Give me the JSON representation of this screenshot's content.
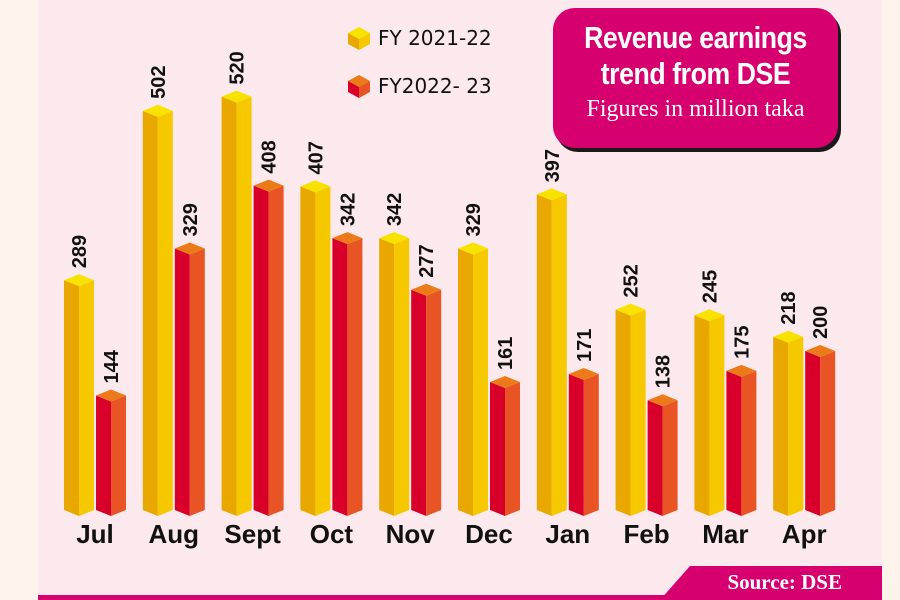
{
  "chart_data": {
    "type": "bar",
    "title": "Revenue earnings trend from DSE",
    "subtitle": "Figures in million taka",
    "xlabel": "",
    "ylabel": "",
    "ylim": [
      0,
      560
    ],
    "grid": false,
    "legend_position": "top-center",
    "categories": [
      "Jul",
      "Aug",
      "Sept",
      "Oct",
      "Nov",
      "Dec",
      "Jan",
      "Feb",
      "Mar",
      "Apr"
    ],
    "series": [
      {
        "name": "FY 2021-22",
        "color": "#f2c400",
        "values": [
          289,
          502,
          520,
          407,
          342,
          329,
          397,
          252,
          245,
          218
        ]
      },
      {
        "name": "FY2022- 23",
        "color": "#e8452a",
        "values": [
          144,
          329,
          408,
          342,
          277,
          161,
          171,
          138,
          175,
          200
        ]
      }
    ],
    "source": "Source: DSE"
  },
  "colors": {
    "accent": "#d6006f",
    "panel_bg": "#fce9ee",
    "page_bg": "#fdf3ea",
    "s1_left": "#e8a800",
    "s1_right": "#f5c800",
    "s1_top": "#f7e200",
    "s2_left": "#d8002a",
    "s2_right": "#e85424",
    "s2_top": "#ec7a18"
  }
}
